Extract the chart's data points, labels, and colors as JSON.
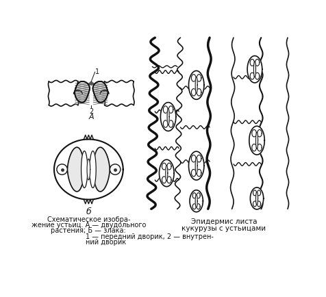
{
  "background_color": "#ffffff",
  "fig_width": 4.77,
  "fig_height": 4.35,
  "dpi": 100,
  "caption_left_lines": [
    "Схематическое изобра-",
    "жение устьиц. А — двудольного",
    "растения; Б — злака:",
    "1 — передний дворик, 2 — внутрен-",
    "ний дворик"
  ],
  "caption_right_lines": [
    "Эпидермис листа",
    "кукурузы с устьицами"
  ],
  "line_color": "#111111",
  "label_1": "1",
  "label_2": "2",
  "label_A": "А",
  "label_B": "б"
}
